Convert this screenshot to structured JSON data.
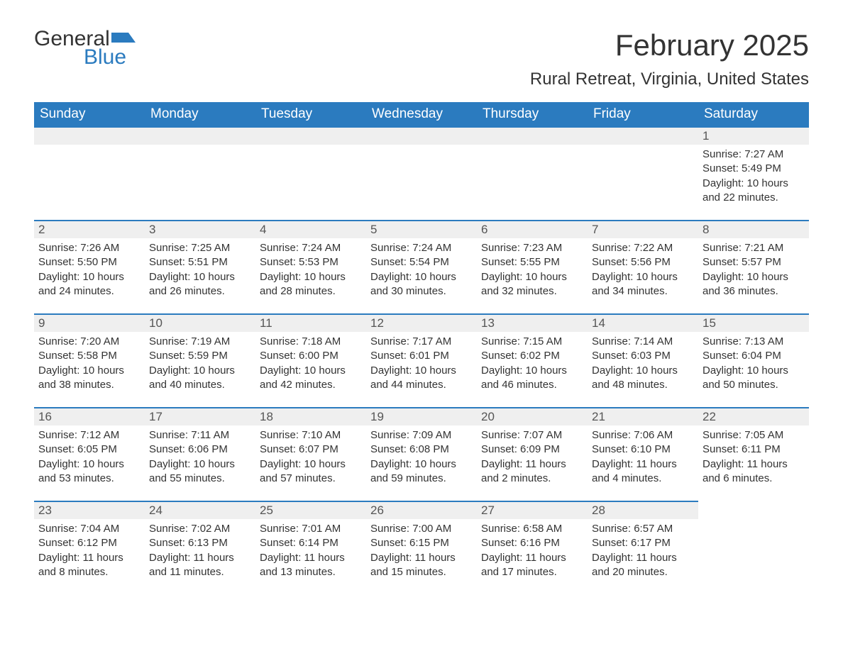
{
  "logo": {
    "word1": "General",
    "word2": "Blue",
    "flag_color": "#2b7bbf"
  },
  "title": "February 2025",
  "location": "Rural Retreat, Virginia, United States",
  "colors": {
    "header_bg": "#2b7bbf",
    "header_text": "#ffffff",
    "daynum_bg": "#efefef",
    "border_top": "#2b7bbf",
    "body_text": "#333333"
  },
  "day_headers": [
    "Sunday",
    "Monday",
    "Tuesday",
    "Wednesday",
    "Thursday",
    "Friday",
    "Saturday"
  ],
  "weeks": [
    [
      null,
      null,
      null,
      null,
      null,
      null,
      {
        "n": "1",
        "sunrise": "Sunrise: 7:27 AM",
        "sunset": "Sunset: 5:49 PM",
        "daylight": "Daylight: 10 hours and 22 minutes."
      }
    ],
    [
      {
        "n": "2",
        "sunrise": "Sunrise: 7:26 AM",
        "sunset": "Sunset: 5:50 PM",
        "daylight": "Daylight: 10 hours and 24 minutes."
      },
      {
        "n": "3",
        "sunrise": "Sunrise: 7:25 AM",
        "sunset": "Sunset: 5:51 PM",
        "daylight": "Daylight: 10 hours and 26 minutes."
      },
      {
        "n": "4",
        "sunrise": "Sunrise: 7:24 AM",
        "sunset": "Sunset: 5:53 PM",
        "daylight": "Daylight: 10 hours and 28 minutes."
      },
      {
        "n": "5",
        "sunrise": "Sunrise: 7:24 AM",
        "sunset": "Sunset: 5:54 PM",
        "daylight": "Daylight: 10 hours and 30 minutes."
      },
      {
        "n": "6",
        "sunrise": "Sunrise: 7:23 AM",
        "sunset": "Sunset: 5:55 PM",
        "daylight": "Daylight: 10 hours and 32 minutes."
      },
      {
        "n": "7",
        "sunrise": "Sunrise: 7:22 AM",
        "sunset": "Sunset: 5:56 PM",
        "daylight": "Daylight: 10 hours and 34 minutes."
      },
      {
        "n": "8",
        "sunrise": "Sunrise: 7:21 AM",
        "sunset": "Sunset: 5:57 PM",
        "daylight": "Daylight: 10 hours and 36 minutes."
      }
    ],
    [
      {
        "n": "9",
        "sunrise": "Sunrise: 7:20 AM",
        "sunset": "Sunset: 5:58 PM",
        "daylight": "Daylight: 10 hours and 38 minutes."
      },
      {
        "n": "10",
        "sunrise": "Sunrise: 7:19 AM",
        "sunset": "Sunset: 5:59 PM",
        "daylight": "Daylight: 10 hours and 40 minutes."
      },
      {
        "n": "11",
        "sunrise": "Sunrise: 7:18 AM",
        "sunset": "Sunset: 6:00 PM",
        "daylight": "Daylight: 10 hours and 42 minutes."
      },
      {
        "n": "12",
        "sunrise": "Sunrise: 7:17 AM",
        "sunset": "Sunset: 6:01 PM",
        "daylight": "Daylight: 10 hours and 44 minutes."
      },
      {
        "n": "13",
        "sunrise": "Sunrise: 7:15 AM",
        "sunset": "Sunset: 6:02 PM",
        "daylight": "Daylight: 10 hours and 46 minutes."
      },
      {
        "n": "14",
        "sunrise": "Sunrise: 7:14 AM",
        "sunset": "Sunset: 6:03 PM",
        "daylight": "Daylight: 10 hours and 48 minutes."
      },
      {
        "n": "15",
        "sunrise": "Sunrise: 7:13 AM",
        "sunset": "Sunset: 6:04 PM",
        "daylight": "Daylight: 10 hours and 50 minutes."
      }
    ],
    [
      {
        "n": "16",
        "sunrise": "Sunrise: 7:12 AM",
        "sunset": "Sunset: 6:05 PM",
        "daylight": "Daylight: 10 hours and 53 minutes."
      },
      {
        "n": "17",
        "sunrise": "Sunrise: 7:11 AM",
        "sunset": "Sunset: 6:06 PM",
        "daylight": "Daylight: 10 hours and 55 minutes."
      },
      {
        "n": "18",
        "sunrise": "Sunrise: 7:10 AM",
        "sunset": "Sunset: 6:07 PM",
        "daylight": "Daylight: 10 hours and 57 minutes."
      },
      {
        "n": "19",
        "sunrise": "Sunrise: 7:09 AM",
        "sunset": "Sunset: 6:08 PM",
        "daylight": "Daylight: 10 hours and 59 minutes."
      },
      {
        "n": "20",
        "sunrise": "Sunrise: 7:07 AM",
        "sunset": "Sunset: 6:09 PM",
        "daylight": "Daylight: 11 hours and 2 minutes."
      },
      {
        "n": "21",
        "sunrise": "Sunrise: 7:06 AM",
        "sunset": "Sunset: 6:10 PM",
        "daylight": "Daylight: 11 hours and 4 minutes."
      },
      {
        "n": "22",
        "sunrise": "Sunrise: 7:05 AM",
        "sunset": "Sunset: 6:11 PM",
        "daylight": "Daylight: 11 hours and 6 minutes."
      }
    ],
    [
      {
        "n": "23",
        "sunrise": "Sunrise: 7:04 AM",
        "sunset": "Sunset: 6:12 PM",
        "daylight": "Daylight: 11 hours and 8 minutes."
      },
      {
        "n": "24",
        "sunrise": "Sunrise: 7:02 AM",
        "sunset": "Sunset: 6:13 PM",
        "daylight": "Daylight: 11 hours and 11 minutes."
      },
      {
        "n": "25",
        "sunrise": "Sunrise: 7:01 AM",
        "sunset": "Sunset: 6:14 PM",
        "daylight": "Daylight: 11 hours and 13 minutes."
      },
      {
        "n": "26",
        "sunrise": "Sunrise: 7:00 AM",
        "sunset": "Sunset: 6:15 PM",
        "daylight": "Daylight: 11 hours and 15 minutes."
      },
      {
        "n": "27",
        "sunrise": "Sunrise: 6:58 AM",
        "sunset": "Sunset: 6:16 PM",
        "daylight": "Daylight: 11 hours and 17 minutes."
      },
      {
        "n": "28",
        "sunrise": "Sunrise: 6:57 AM",
        "sunset": "Sunset: 6:17 PM",
        "daylight": "Daylight: 11 hours and 20 minutes."
      },
      null
    ]
  ]
}
